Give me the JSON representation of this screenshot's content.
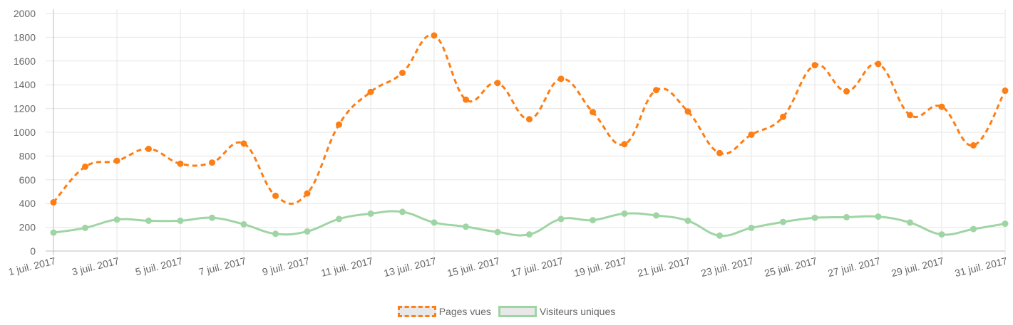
{
  "chart_data": {
    "type": "line",
    "x": [
      "1 juil. 2017",
      "2 juil. 2017",
      "3 juil. 2017",
      "4 juil. 2017",
      "5 juil. 2017",
      "6 juil. 2017",
      "7 juil. 2017",
      "8 juil. 2017",
      "9 juil. 2017",
      "10 juil. 2017",
      "11 juil. 2017",
      "12 juil. 2017",
      "13 juil. 2017",
      "14 juil. 2017",
      "15 juil. 2017",
      "16 juil. 2017",
      "17 juil. 2017",
      "18 juil. 2017",
      "19 juil. 2017",
      "20 juil. 2017",
      "21 juil. 2017",
      "22 juil. 2017",
      "23 juil. 2017",
      "24 juil. 2017",
      "25 juil. 2017",
      "26 juil. 2017",
      "27 juil. 2017",
      "28 juil. 2017",
      "29 juil. 2017",
      "30 juil. 2017",
      "31 juil. 2017"
    ],
    "x_tick_labels": [
      "1 juil. 2017",
      "3 juil. 2017",
      "5 juil. 2017",
      "7 juil. 2017",
      "9 juil. 2017",
      "11 juil. 2017",
      "13 juil. 2017",
      "15 juil. 2017",
      "17 juil. 2017",
      "19 juil. 2017",
      "21 juil. 2017",
      "23 juil. 2017",
      "25 juil. 2017",
      "27 juil. 2017",
      "29 juil. 2017",
      "31 juil. 2017"
    ],
    "y_ticks": [
      0,
      200,
      400,
      600,
      800,
      1000,
      1200,
      1400,
      1600,
      1800,
      2000
    ],
    "ylim": [
      0,
      2000
    ],
    "grid": true,
    "legend_position": "bottom",
    "series": [
      {
        "name": "Pages vues",
        "color": "#fd7e14",
        "style": "dashed",
        "values": [
          410,
          710,
          760,
          860,
          735,
          745,
          905,
          465,
          485,
          1065,
          1340,
          1500,
          1815,
          1275,
          1415,
          1110,
          1450,
          1170,
          900,
          1355,
          1175,
          825,
          980,
          1130,
          1565,
          1345,
          1575,
          1145,
          1215,
          890,
          1350
        ]
      },
      {
        "name": "Visiteurs uniques",
        "color": "#9fd5a4",
        "style": "solid",
        "values": [
          155,
          195,
          265,
          255,
          255,
          280,
          225,
          145,
          165,
          270,
          315,
          330,
          240,
          205,
          160,
          140,
          270,
          260,
          315,
          300,
          255,
          130,
          195,
          245,
          280,
          285,
          290,
          240,
          140,
          185,
          230
        ]
      }
    ]
  }
}
